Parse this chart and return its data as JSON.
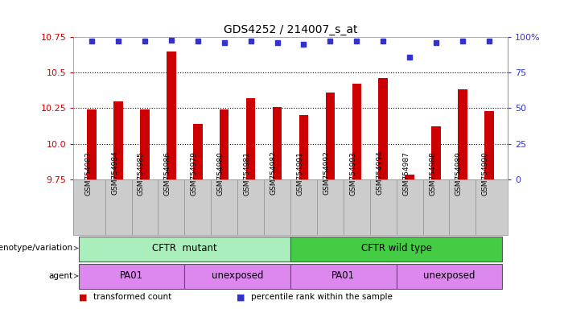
{
  "title": "GDS4252 / 214007_s_at",
  "samples": [
    "GSM754983",
    "GSM754984",
    "GSM754985",
    "GSM754986",
    "GSM754979",
    "GSM754980",
    "GSM754981",
    "GSM754982",
    "GSM754991",
    "GSM754992",
    "GSM754993",
    "GSM754994",
    "GSM754987",
    "GSM754988",
    "GSM754989",
    "GSM754990"
  ],
  "transformed_count": [
    10.24,
    10.3,
    10.24,
    10.65,
    10.14,
    10.24,
    10.32,
    10.26,
    10.2,
    10.36,
    10.42,
    10.46,
    9.78,
    10.12,
    10.38,
    10.23
  ],
  "percentile_rank": [
    97,
    97,
    97,
    98,
    97,
    96,
    97,
    96,
    95,
    97,
    97,
    97,
    86,
    96,
    97,
    97
  ],
  "ylim_left": [
    9.75,
    10.75
  ],
  "yticks_left": [
    9.75,
    10.0,
    10.25,
    10.5,
    10.75
  ],
  "ylim_right": [
    0,
    100
  ],
  "yticks_right": [
    0,
    25,
    50,
    75,
    100
  ],
  "right_ytick_labels": [
    "0",
    "25",
    "50",
    "75",
    "100%"
  ],
  "bar_color": "#cc0000",
  "dot_color": "#3333cc",
  "genotype_groups": [
    {
      "label": "CFTR  mutant",
      "start": 0,
      "end": 8,
      "color": "#aaeebb"
    },
    {
      "label": "CFTR wild type",
      "start": 8,
      "end": 16,
      "color": "#44cc44"
    }
  ],
  "agent_groups": [
    {
      "label": "PA01",
      "start": 0,
      "end": 4,
      "color": "#dd88ee"
    },
    {
      "label": "unexposed",
      "start": 4,
      "end": 8,
      "color": "#dd88ee"
    },
    {
      "label": "PA01",
      "start": 8,
      "end": 12,
      "color": "#dd88ee"
    },
    {
      "label": "unexposed",
      "start": 12,
      "end": 16,
      "color": "#dd88ee"
    }
  ],
  "genotype_label": "genotype/variation",
  "agent_label": "agent",
  "legend_items": [
    {
      "label": "transformed count",
      "color": "#cc0000"
    },
    {
      "label": "percentile rank within the sample",
      "color": "#3333cc"
    }
  ],
  "bg_color": "#ffffff",
  "plot_bg_color": "#ffffff",
  "xtick_bg_color": "#cccccc"
}
